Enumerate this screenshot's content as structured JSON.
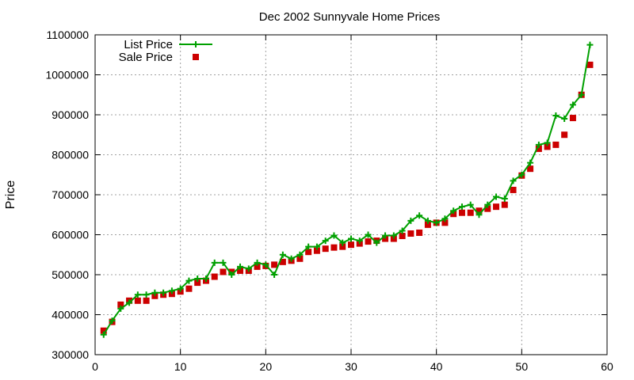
{
  "chart_data": {
    "type": "line",
    "title": "Dec 2002 Sunnyvale Home Prices",
    "xlabel": "",
    "ylabel": "Price",
    "xlim": [
      0,
      60
    ],
    "ylim": [
      300000,
      1100000
    ],
    "xticks": [
      0,
      10,
      20,
      30,
      40,
      50,
      60
    ],
    "yticks": [
      300000,
      400000,
      500000,
      600000,
      700000,
      800000,
      900000,
      1000000,
      1100000
    ],
    "grid": true,
    "legend_position": "top-left",
    "series": [
      {
        "name": "List Price",
        "style": "line-with-plus-markers",
        "color": "#00a000",
        "x": [
          1,
          2,
          3,
          4,
          5,
          6,
          7,
          8,
          9,
          10,
          11,
          12,
          13,
          14,
          15,
          16,
          17,
          18,
          19,
          20,
          21,
          22,
          23,
          24,
          25,
          26,
          27,
          28,
          29,
          30,
          31,
          32,
          33,
          34,
          35,
          36,
          37,
          38,
          39,
          40,
          41,
          42,
          43,
          44,
          45,
          46,
          47,
          48,
          49,
          50,
          51,
          52,
          53,
          54,
          55,
          56,
          57,
          58
        ],
        "values": [
          350000,
          385000,
          415000,
          430000,
          450000,
          450000,
          455000,
          455000,
          460000,
          465000,
          485000,
          490000,
          490000,
          530000,
          530000,
          500000,
          520000,
          515000,
          530000,
          525000,
          500000,
          550000,
          540000,
          550000,
          570000,
          570000,
          585000,
          598000,
          580000,
          590000,
          585000,
          600000,
          580000,
          598000,
          598000,
          610000,
          635000,
          648000,
          635000,
          630000,
          640000,
          660000,
          670000,
          675000,
          650000,
          675000,
          695000,
          690000,
          735000,
          750000,
          780000,
          825000,
          830000,
          898000,
          890000,
          925000,
          950000,
          1075000
        ]
      },
      {
        "name": "Sale Price",
        "style": "square-markers",
        "color": "#cc0000",
        "x": [
          1,
          2,
          3,
          4,
          5,
          6,
          7,
          8,
          9,
          10,
          11,
          12,
          13,
          14,
          15,
          16,
          17,
          18,
          19,
          20,
          21,
          22,
          23,
          24,
          25,
          26,
          27,
          28,
          29,
          30,
          31,
          32,
          33,
          34,
          35,
          36,
          37,
          38,
          39,
          40,
          41,
          42,
          43,
          44,
          45,
          46,
          47,
          48,
          49,
          50,
          51,
          52,
          53,
          54,
          55,
          56,
          57,
          58
        ],
        "values": [
          360000,
          382000,
          425000,
          435000,
          435000,
          435000,
          447000,
          450000,
          452000,
          458000,
          465000,
          480000,
          485000,
          495000,
          507000,
          507000,
          510000,
          510000,
          520000,
          522000,
          525000,
          532000,
          535000,
          540000,
          557000,
          560000,
          565000,
          568000,
          570000,
          575000,
          578000,
          583000,
          585000,
          590000,
          590000,
          597000,
          603000,
          605000,
          625000,
          630000,
          630000,
          652000,
          655000,
          655000,
          660000,
          665000,
          670000,
          675000,
          712000,
          748000,
          765000,
          815000,
          820000,
          825000,
          850000,
          892000,
          950000,
          1025000
        ]
      }
    ]
  }
}
